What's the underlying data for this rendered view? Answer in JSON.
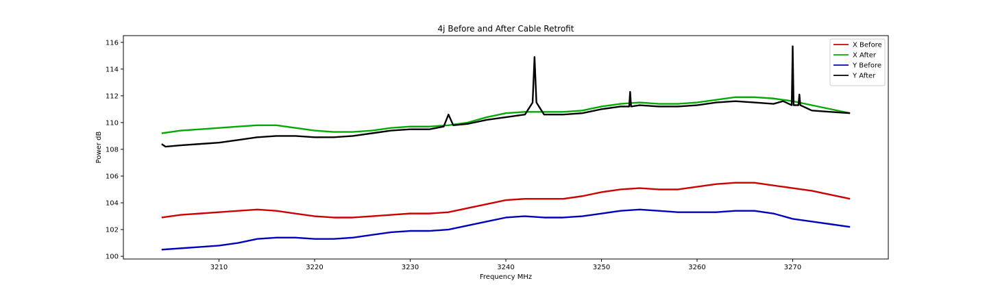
{
  "chart_data": {
    "type": "line",
    "title": "4j Before and After Cable Retrofit",
    "xlabel": "Frequency MHz",
    "ylabel": "Power dB",
    "xlim": [
      3200,
      3280
    ],
    "ylim": [
      99.8,
      116.5
    ],
    "xticks": [
      3210,
      3220,
      3230,
      3240,
      3250,
      3260,
      3270
    ],
    "yticks": [
      100,
      102,
      104,
      106,
      108,
      110,
      112,
      114,
      116
    ],
    "grid": false,
    "legend_position": "top-right",
    "series": [
      {
        "name": "X Before",
        "color": "#cc0000",
        "x": [
          3204,
          3206,
          3208,
          3210,
          3212,
          3214,
          3216,
          3218,
          3220,
          3222,
          3224,
          3226,
          3228,
          3230,
          3232,
          3234,
          3236,
          3238,
          3240,
          3242,
          3244,
          3246,
          3248,
          3250,
          3252,
          3254,
          3256,
          3258,
          3260,
          3262,
          3264,
          3266,
          3268,
          3270,
          3272,
          3274,
          3276
        ],
        "y": [
          102.9,
          103.1,
          103.2,
          103.3,
          103.4,
          103.5,
          103.4,
          103.2,
          103.0,
          102.9,
          102.9,
          103.0,
          103.1,
          103.2,
          103.2,
          103.3,
          103.6,
          103.9,
          104.2,
          104.3,
          104.3,
          104.3,
          104.5,
          104.8,
          105.0,
          105.1,
          105.0,
          105.0,
          105.2,
          105.4,
          105.5,
          105.5,
          105.3,
          105.1,
          104.9,
          104.6,
          104.3
        ]
      },
      {
        "name": "X After",
        "color": "#00aa00",
        "x": [
          3204,
          3206,
          3208,
          3210,
          3212,
          3214,
          3216,
          3218,
          3220,
          3222,
          3224,
          3226,
          3228,
          3230,
          3232,
          3234,
          3236,
          3238,
          3240,
          3242,
          3244,
          3246,
          3248,
          3250,
          3252,
          3254,
          3256,
          3258,
          3260,
          3262,
          3264,
          3266,
          3268,
          3270,
          3272,
          3274,
          3276
        ],
        "y": [
          109.2,
          109.4,
          109.5,
          109.6,
          109.7,
          109.8,
          109.8,
          109.6,
          109.4,
          109.3,
          109.3,
          109.4,
          109.6,
          109.7,
          109.7,
          109.8,
          110.0,
          110.4,
          110.7,
          110.8,
          110.8,
          110.8,
          110.9,
          111.2,
          111.4,
          111.5,
          111.4,
          111.4,
          111.5,
          111.7,
          111.9,
          111.9,
          111.8,
          111.6,
          111.3,
          111.0,
          110.7
        ]
      },
      {
        "name": "Y Before",
        "color": "#0000bb",
        "x": [
          3204,
          3206,
          3208,
          3210,
          3212,
          3214,
          3216,
          3218,
          3220,
          3222,
          3224,
          3226,
          3228,
          3230,
          3232,
          3234,
          3236,
          3238,
          3240,
          3242,
          3244,
          3246,
          3248,
          3250,
          3252,
          3254,
          3256,
          3258,
          3260,
          3262,
          3264,
          3266,
          3268,
          3270,
          3272,
          3274,
          3276
        ],
        "y": [
          100.5,
          100.6,
          100.7,
          100.8,
          101.0,
          101.3,
          101.4,
          101.4,
          101.3,
          101.3,
          101.4,
          101.6,
          101.8,
          101.9,
          101.9,
          102.0,
          102.3,
          102.6,
          102.9,
          103.0,
          102.9,
          102.9,
          103.0,
          103.2,
          103.4,
          103.5,
          103.4,
          103.3,
          103.3,
          103.3,
          103.4,
          103.4,
          103.2,
          102.8,
          102.6,
          102.4,
          102.2
        ]
      },
      {
        "name": "Y After",
        "color": "#000000",
        "x": [
          3204,
          3204.4,
          3206,
          3208,
          3210,
          3212,
          3214,
          3216,
          3218,
          3220,
          3222,
          3224,
          3226,
          3228,
          3230,
          3232,
          3233.5,
          3234,
          3234.5,
          3236,
          3238,
          3240,
          3242,
          3242.8,
          3243.0,
          3243.2,
          3244,
          3246,
          3248,
          3250,
          3252,
          3252.9,
          3253.0,
          3253.1,
          3254,
          3256,
          3258,
          3260,
          3262,
          3264,
          3266,
          3268,
          3269,
          3269.9,
          3270.0,
          3270.1,
          3270.6,
          3270.7,
          3270.8,
          3272,
          3274,
          3276
        ],
        "y": [
          108.4,
          108.2,
          108.3,
          108.4,
          108.5,
          108.7,
          108.9,
          109.0,
          109.0,
          108.9,
          108.9,
          109.0,
          109.2,
          109.4,
          109.5,
          109.5,
          109.7,
          110.6,
          109.8,
          109.9,
          110.2,
          110.4,
          110.6,
          111.5,
          114.9,
          111.5,
          110.6,
          110.6,
          110.7,
          111.0,
          111.2,
          111.2,
          112.3,
          111.2,
          111.3,
          111.2,
          111.2,
          111.3,
          111.5,
          111.6,
          111.5,
          111.4,
          111.6,
          111.3,
          115.7,
          111.3,
          111.3,
          112.1,
          111.3,
          110.9,
          110.8,
          110.7
        ]
      }
    ]
  }
}
